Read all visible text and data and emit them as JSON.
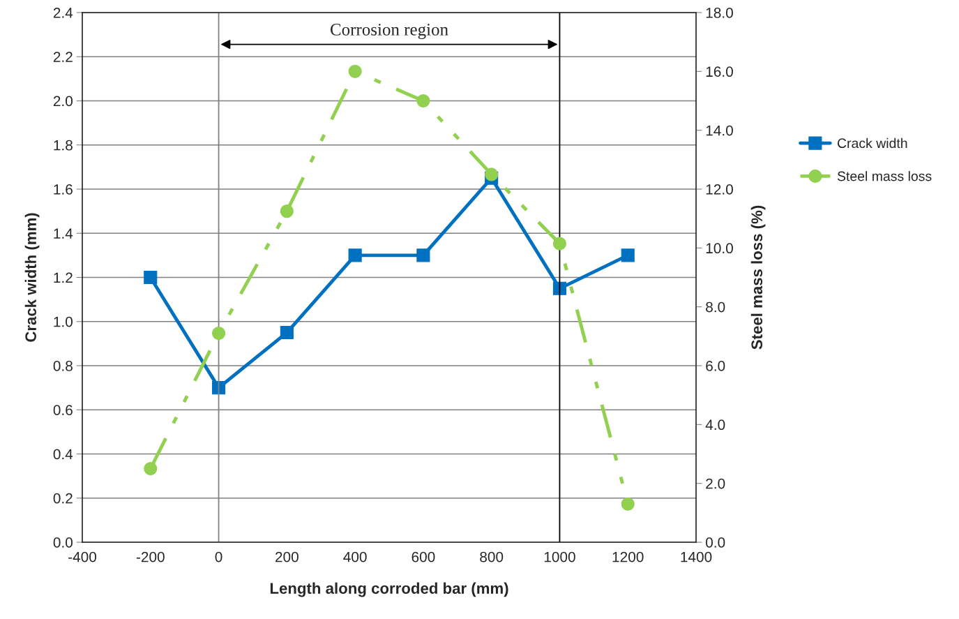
{
  "chart_data": {
    "type": "line",
    "xlabel": "Length along corroded bar (mm)",
    "ylabel": "Crack width (mm)",
    "y2label": "Steel mass loss (%)",
    "x": [
      -200,
      0,
      200,
      400,
      600,
      800,
      1000,
      1200
    ],
    "series": [
      {
        "name": "Crack width",
        "color": "#0070c0",
        "marker": "square",
        "line_style": "solid",
        "values": [
          1.2,
          0.7,
          0.95,
          1.3,
          1.3,
          1.65,
          1.15,
          1.3
        ]
      },
      {
        "name": "Steel mass loss",
        "color": "#92d050",
        "marker": "circle",
        "line_style": "dashed",
        "axis": "y2",
        "values": [
          2.5,
          7.1,
          11.25,
          16.0,
          15.0,
          12.5,
          10.15,
          1.3
        ]
      }
    ],
    "xlim": [
      -400,
      1400
    ],
    "xticks": [
      -400,
      -200,
      0,
      200,
      400,
      600,
      800,
      1000,
      1200,
      1400
    ],
    "ylim": [
      0,
      2.4
    ],
    "yticks": [
      {
        "value": 0,
        "label": "0.0"
      },
      0.2,
      0.4,
      0.6,
      0.8,
      {
        "value": 1,
        "label": "1.0"
      },
      1.2,
      1.4,
      1.6,
      1.8,
      {
        "value": 2,
        "label": "2.0"
      },
      2.2,
      2.4
    ],
    "y2lim": [
      0,
      18
    ],
    "y2ticks": [
      {
        "value": 0,
        "label": "0.0"
      },
      {
        "value": 2,
        "label": "2.0"
      },
      {
        "value": 4,
        "label": "4.0"
      },
      {
        "value": 6,
        "label": "6.0"
      },
      {
        "value": 8,
        "label": "8.0"
      },
      {
        "value": 10,
        "label": "10.0"
      },
      {
        "value": 12,
        "label": "12.0"
      },
      {
        "value": 14,
        "label": "14.0"
      },
      {
        "value": 16,
        "label": "16.0"
      },
      {
        "value": 18,
        "label": "18.0"
      }
    ],
    "ref_lines": [
      {
        "axis": "x",
        "value": 0,
        "color": "#808080"
      },
      {
        "axis": "x",
        "value": 1000,
        "color": "#000000"
      }
    ],
    "annotations": [
      "Corrosion region"
    ],
    "grid": "y",
    "legend": "right"
  }
}
